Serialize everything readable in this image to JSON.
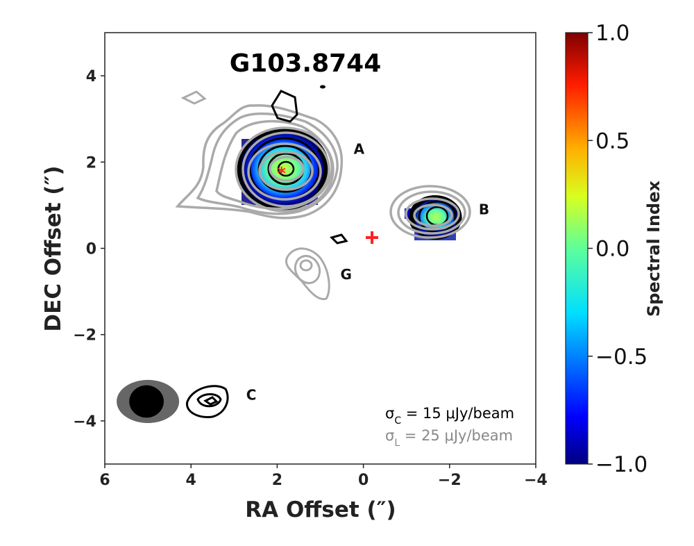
{
  "chart_data": {
    "type": "contour-map",
    "title": "G103.8744",
    "xlabel": "RA Offset (″)",
    "ylabel": "DEC Offset (″)",
    "xlim": [
      6,
      -4
    ],
    "ylim": [
      -5,
      5
    ],
    "xticks": [
      6,
      4,
      2,
      0,
      -2,
      -4
    ],
    "xtick_labels": [
      "6",
      "4",
      "2",
      "0",
      "−2",
      "−4"
    ],
    "yticks": [
      4,
      2,
      0,
      -2,
      -4
    ],
    "ytick_labels": [
      "4",
      "2",
      "0",
      "−2",
      "−4"
    ],
    "colorbar": {
      "label": "Spectral Index",
      "range": [
        -1.0,
        1.0
      ],
      "ticks": [
        1.0,
        0.5,
        0.0,
        -0.5,
        -1.0
      ],
      "tick_labels": [
        "1.0",
        "0.5",
        "0.0",
        "−0.5",
        "−1.0"
      ],
      "colormap": "jet"
    },
    "sources": [
      {
        "label": "A",
        "x": 1.8,
        "y": 1.8,
        "label_x": 0.1,
        "label_y": 2.3,
        "spectral_index_peak": 0.2
      },
      {
        "label": "B",
        "x": -1.7,
        "y": 0.7,
        "label_x": -2.8,
        "label_y": 0.9,
        "spectral_index_peak": 0.1
      },
      {
        "label": "C",
        "x": 3.5,
        "y": -3.6,
        "label_x": 2.6,
        "label_y": -3.4
      },
      {
        "label": "G",
        "x": 1.4,
        "y": -0.5,
        "label_x": 0.4,
        "label_y": -0.6
      }
    ],
    "markers": [
      {
        "shape": "star",
        "x": 1.9,
        "y": 1.8,
        "color": "#ff2020"
      },
      {
        "shape": "plus",
        "x": -0.2,
        "y": 0.25,
        "color": "#ff2020"
      }
    ],
    "sigma_lines": [
      {
        "text": "σ_C = 15 μJy/beam",
        "sym": "σ",
        "sub": "C",
        "rest": " = 15 μJy/beam",
        "color": "#000000"
      },
      {
        "text": "σ_L = 25 μJy/beam",
        "sym": "σ",
        "sub": "L",
        "rest": " = 25 μJy/beam",
        "color": "#888888"
      }
    ],
    "contour_colors": {
      "C_band": "#000000",
      "L_band": "#aaaaaa"
    },
    "beams": [
      {
        "band": "L",
        "x": 5.0,
        "y": -3.55,
        "major": 1.45,
        "minor": 1.0,
        "color": "#666666"
      },
      {
        "band": "C",
        "x": 5.0,
        "y": -3.55,
        "major": 0.8,
        "minor": 0.75,
        "color": "#000000"
      }
    ]
  }
}
